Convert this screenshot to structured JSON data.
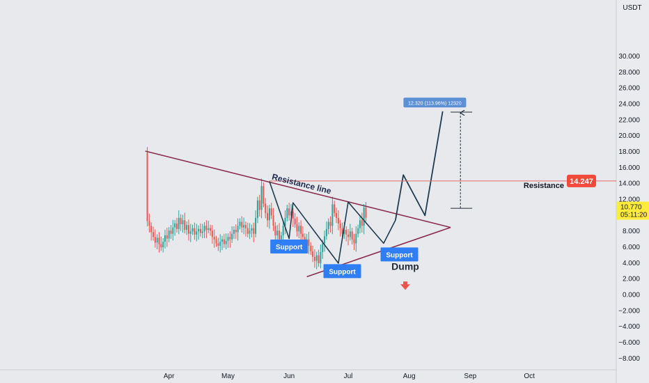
{
  "chart_data": {
    "type": "candlestick",
    "currency_label": "USDT",
    "y_axis": {
      "ylim": [
        -9.5,
        37
      ],
      "ticks": [
        -8,
        -6,
        -4,
        -2,
        0,
        2,
        4,
        6,
        8,
        10,
        12,
        14,
        16,
        18,
        20,
        22,
        24,
        26,
        28,
        30
      ],
      "tick_labels": [
        "−8.000",
        "−6.000",
        "−4.000",
        "−2.000",
        "0.000",
        "2.000",
        "4.000",
        "6.000",
        "8.000",
        "10.000",
        "12.000",
        "14.000",
        "16.000",
        "18.000",
        "20.000",
        "22.000",
        "24.000",
        "26.000",
        "28.000",
        "30.000"
      ]
    },
    "x_axis": {
      "start": "2022-03-01",
      "end": "2022-10-31",
      "month_labels": [
        {
          "label": "Apr",
          "date": "2022-04-01"
        },
        {
          "label": "May",
          "date": "2022-05-01"
        },
        {
          "label": "Jun",
          "date": "2022-06-01"
        },
        {
          "label": "Jul",
          "date": "2022-07-01"
        },
        {
          "label": "Aug",
          "date": "2022-08-01"
        },
        {
          "label": "Sep",
          "date": "2022-09-01"
        },
        {
          "label": "Oct",
          "date": "2022-10-01"
        }
      ]
    },
    "first_candle_date": "2022-03-20",
    "closes": [
      17.8,
      9.2,
      8.6,
      7.8,
      7.2,
      6.5,
      7.1,
      6.3,
      5.9,
      6.6,
      7.4,
      7.0,
      8.0,
      7.6,
      8.4,
      8.9,
      8.2,
      9.6,
      8.8,
      9.3,
      8.1,
      8.7,
      7.6,
      7.9,
      8.3,
      7.5,
      7.9,
      8.2,
      7.7,
      7.9,
      8.6,
      8.1,
      8.3,
      8.0,
      7.2,
      6.9,
      6.4,
      6.1,
      6.6,
      6.9,
      6.3,
      6.7,
      7.2,
      6.9,
      7.6,
      8.1,
      7.8,
      8.6,
      9.1,
      8.4,
      8.7,
      8.3,
      7.6,
      8.0,
      8.3,
      7.6,
      9.6,
      11.8,
      10.6,
      13.6,
      11.4,
      10.2,
      9.3,
      10.8,
      9.9,
      8.6,
      7.4,
      8.0,
      6.9,
      7.4,
      8.6,
      9.6,
      10.8,
      9.9,
      10.4,
      9.5,
      8.8,
      7.9,
      8.6,
      7.6,
      7.2,
      6.4,
      6.9,
      6.1,
      5.4,
      4.7,
      4.2,
      4.9,
      3.9,
      5.3,
      6.4,
      7.3,
      8.2,
      9.1,
      8.6,
      11.3,
      10.2,
      9.6,
      8.9,
      8.3,
      7.6,
      8.1,
      7.5,
      7.2,
      7.9,
      6.9,
      6.4,
      7.6,
      8.3,
      9.3,
      8.6,
      10.9,
      9.6
    ],
    "trend_lines": [
      {
        "name": "resistance-trendline",
        "points": [
          [
            "2022-03-20",
            18.0
          ],
          [
            "2022-08-22",
            8.4
          ]
        ]
      },
      {
        "name": "support-trendline",
        "points": [
          [
            "2022-06-10",
            2.2
          ],
          [
            "2022-08-22",
            8.4
          ]
        ]
      },
      {
        "name": "zigzag-path",
        "points": [
          [
            "2022-05-22",
            14.2
          ],
          [
            "2022-06-01",
            7.0
          ],
          [
            "2022-06-03",
            11.5
          ],
          [
            "2022-06-26",
            3.9
          ],
          [
            "2022-07-01",
            11.6
          ],
          [
            "2022-07-19",
            6.4
          ],
          [
            "2022-07-25",
            9.3
          ]
        ]
      },
      {
        "name": "projection-path",
        "points": [
          [
            "2022-07-25",
            9.3
          ],
          [
            "2022-07-29",
            15.0
          ],
          [
            "2022-08-09",
            9.9
          ],
          [
            "2022-08-18",
            23.0
          ]
        ]
      }
    ],
    "resistance_level": 14.247,
    "resistance_label": "Resistance",
    "current_price": "10.770",
    "countdown": "05:11:20",
    "annotations": {
      "resistance_line_text": "Resistance line",
      "support_labels": [
        "Support",
        "Support",
        "Support"
      ],
      "dump_text": "Dump",
      "measure_label": "12.320 (113.96%) 12320"
    },
    "colors": {
      "up": "#26a69a",
      "down": "#ef5350",
      "trendline": "#8b2d4d",
      "path": "#1e3a4f",
      "resistance_tag": "#f14a3a",
      "price_tag": "#ffeb3b",
      "support_tag": "#2f7ef5",
      "measure_tag": "#5b8fd6"
    }
  }
}
